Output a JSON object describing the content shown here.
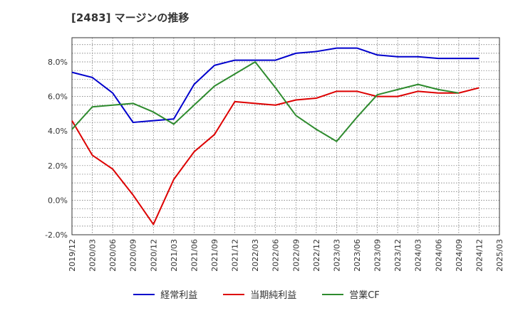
{
  "title": "[2483]  マージンの推移",
  "chart_data": {
    "type": "line",
    "title": "[2483]  マージンの推移",
    "xlabel": "",
    "ylabel": "",
    "ylim": [
      -2,
      9.4
    ],
    "yticks": [
      "-2.0%",
      "0.0%",
      "2.0%",
      "4.0%",
      "6.0%",
      "8.0%"
    ],
    "ytick_values": [
      -2,
      0,
      2,
      4,
      6,
      8
    ],
    "xticks": [
      "2019/12",
      "2020/03",
      "2020/06",
      "2020/09",
      "2020/12",
      "2021/03",
      "2021/06",
      "2021/09",
      "2021/12",
      "2022/03",
      "2022/06",
      "2022/09",
      "2022/12",
      "2023/03",
      "2023/06",
      "2023/09",
      "2023/12",
      "2024/03",
      "2024/06",
      "2024/09",
      "2024/12",
      "2025/03"
    ],
    "grid": true,
    "legend_position": "bottom",
    "series": [
      {
        "name": "経常利益",
        "color": "#0000cc",
        "values": [
          7.4,
          7.1,
          6.2,
          4.5,
          4.6,
          4.7,
          6.7,
          7.8,
          8.1,
          8.1,
          8.1,
          8.5,
          8.6,
          8.8,
          8.8,
          8.4,
          8.3,
          8.3,
          8.2,
          8.2,
          8.2
        ]
      },
      {
        "name": "当期純利益",
        "color": "#dd0000",
        "values": [
          4.6,
          2.6,
          1.8,
          0.3,
          -1.4,
          1.2,
          2.8,
          3.8,
          5.7,
          5.6,
          5.5,
          5.8,
          5.9,
          6.3,
          6.3,
          6.0,
          6.0,
          6.3,
          6.2,
          6.2,
          6.5
        ]
      },
      {
        "name": "営業CF",
        "color": "#2e8b2e",
        "values": [
          4.1,
          5.4,
          5.5,
          5.6,
          5.1,
          4.4,
          5.5,
          6.6,
          7.3,
          8.0,
          6.5,
          4.9,
          4.1,
          3.4,
          4.8,
          6.1,
          6.4,
          6.7,
          6.4,
          6.2,
          null
        ]
      }
    ]
  }
}
